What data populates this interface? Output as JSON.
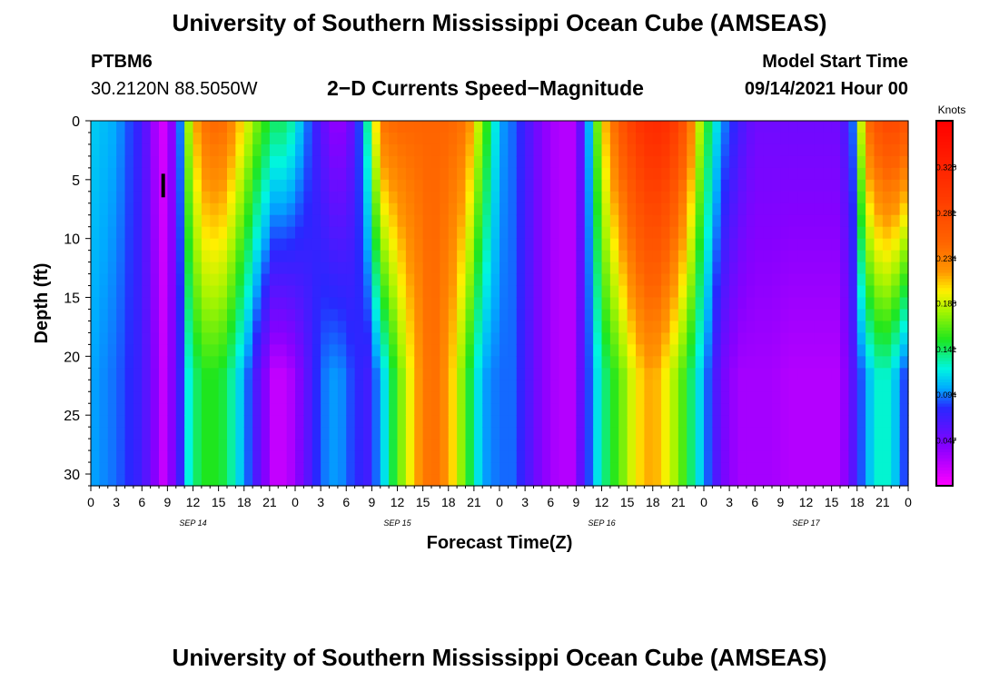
{
  "header": {
    "title": "University of Southern Mississippi Ocean Cube (AMSEAS)",
    "station": "PTBM6",
    "coords": "30.2120N  88.5050W",
    "subtitle": "2−D Currents Speed−Magnitude",
    "start_label": "Model Start Time",
    "start_value": "09/14/2021 Hour 00"
  },
  "footer": {
    "title": "University of Southern Mississippi Ocean Cube (AMSEAS)"
  },
  "chart_data": {
    "type": "heatmap",
    "title": "2−D Currents Speed−Magnitude",
    "xlabel": "Forecast Time(Z)",
    "ylabel": "Depth (ft)",
    "x_range": [
      0,
      96
    ],
    "y_range": [
      0,
      31
    ],
    "x_tick_labels": [
      "0",
      "3",
      "6",
      "9",
      "12",
      "15",
      "18",
      "21",
      "0",
      "3",
      "6",
      "9",
      "12",
      "15",
      "18",
      "21",
      "0",
      "3",
      "6",
      "9",
      "12",
      "15",
      "18",
      "21",
      "0",
      "3",
      "6",
      "9",
      "12",
      "15",
      "18",
      "21",
      "0"
    ],
    "date_labels": [
      {
        "label": "SEP 14",
        "hour": 12
      },
      {
        "label": "SEP 15",
        "hour": 36
      },
      {
        "label": "SEP 16",
        "hour": 60
      },
      {
        "label": "SEP 17",
        "hour": 84
      }
    ],
    "y_ticks": [
      0,
      5,
      10,
      15,
      20,
      25,
      30
    ],
    "colorbar": {
      "unit": "Knots",
      "range": [
        0,
        0.375
      ],
      "ticks": [
        0.047,
        0.094,
        0.141,
        0.188,
        0.234,
        0.281,
        0.328
      ]
    },
    "marker": {
      "hour": 8.5,
      "depth_range": [
        4.5,
        6.5
      ]
    },
    "speed_field": {
      "hours": [
        0,
        3,
        6,
        7.5,
        8.5,
        10,
        11.5,
        13,
        15,
        16,
        18,
        20,
        21.5,
        23,
        25,
        27,
        29,
        31,
        32.5,
        34,
        36,
        38,
        40,
        42,
        44,
        46,
        48,
        49.5,
        51,
        53,
        55,
        56.5,
        58,
        60,
        62,
        64,
        66,
        68,
        70,
        72,
        74,
        76,
        78,
        80,
        82,
        84,
        86,
        88,
        89.5,
        91,
        93,
        95,
        96
      ],
      "surface_knots": [
        0.11,
        0.1,
        0.07,
        0.03,
        0.015,
        0.05,
        0.18,
        0.24,
        0.25,
        0.24,
        0.2,
        0.16,
        0.14,
        0.14,
        0.1,
        0.06,
        0.03,
        0.06,
        0.13,
        0.24,
        0.25,
        0.25,
        0.25,
        0.25,
        0.24,
        0.17,
        0.1,
        0.09,
        0.07,
        0.04,
        0.025,
        0.025,
        0.07,
        0.2,
        0.26,
        0.3,
        0.32,
        0.31,
        0.26,
        0.16,
        0.1,
        0.07,
        0.05,
        0.05,
        0.05,
        0.05,
        0.05,
        0.05,
        0.09,
        0.24,
        0.28,
        0.28,
        0.26
      ],
      "bottom_knots": [
        0.1,
        0.09,
        0.07,
        0.04,
        0.02,
        0.05,
        0.12,
        0.15,
        0.15,
        0.14,
        0.1,
        0.05,
        0.02,
        0.02,
        0.05,
        0.09,
        0.1,
        0.08,
        0.07,
        0.1,
        0.16,
        0.21,
        0.25,
        0.22,
        0.16,
        0.1,
        0.09,
        0.09,
        0.07,
        0.04,
        0.025,
        0.025,
        0.07,
        0.13,
        0.16,
        0.2,
        0.22,
        0.19,
        0.15,
        0.1,
        0.05,
        0.03,
        0.03,
        0.03,
        0.025,
        0.025,
        0.025,
        0.025,
        0.06,
        0.1,
        0.13,
        0.1,
        0.07
      ]
    }
  }
}
